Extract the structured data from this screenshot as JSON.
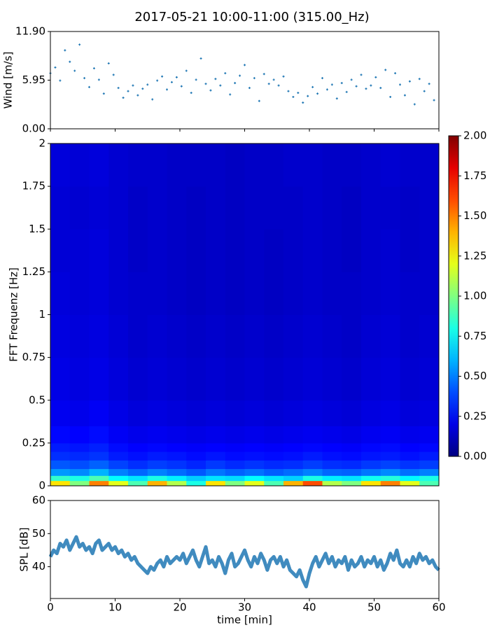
{
  "chart_data": [
    {
      "type": "scatter",
      "title": "2017-05-21 10:00-11:00 (315.00_Hz)",
      "ylabel": "Wind [m/s]",
      "color": "#1f77b4",
      "xlim": [
        0,
        60
      ],
      "xticks": [
        0,
        10,
        20,
        30,
        40,
        50,
        60
      ],
      "xtick_labels": false,
      "ylim": [
        0,
        11.9
      ],
      "yticks": [
        {
          "value": 0,
          "label": "0.00"
        },
        5.95,
        {
          "value": 11.9,
          "label": "11.90"
        }
      ],
      "x": [
        0,
        0.75,
        1.5,
        2.25,
        3,
        3.75,
        4.5,
        5.25,
        6,
        6.75,
        7.5,
        8.25,
        9,
        9.75,
        10.5,
        11.25,
        12,
        12.75,
        13.5,
        14.25,
        15,
        15.75,
        16.5,
        17.25,
        18,
        18.75,
        19.5,
        20.25,
        21,
        21.75,
        22.5,
        23.25,
        24,
        24.75,
        25.5,
        26.25,
        27,
        27.75,
        28.5,
        29.25,
        30,
        30.75,
        31.5,
        32.25,
        33,
        33.75,
        34.5,
        35.25,
        36,
        36.75,
        37.5,
        38.25,
        39,
        39.75,
        40.5,
        41.25,
        42,
        42.75,
        43.5,
        44.25,
        45,
        45.75,
        46.5,
        47.25,
        48,
        48.75,
        49.5,
        50.25,
        51,
        51.75,
        52.5,
        53.25,
        54,
        54.75,
        55.5,
        56.25,
        57,
        57.75,
        58.5,
        59.25
      ],
      "values": [
        6.8,
        7.5,
        5.9,
        9.6,
        8.2,
        7.1,
        10.3,
        6.2,
        5.1,
        7.4,
        6.0,
        4.3,
        8.0,
        6.6,
        5.0,
        3.8,
        4.6,
        5.3,
        4.1,
        4.9,
        5.4,
        3.6,
        5.9,
        6.4,
        4.8,
        5.7,
        6.3,
        5.2,
        7.1,
        4.4,
        6.0,
        8.6,
        5.5,
        4.7,
        6.1,
        5.3,
        6.8,
        4.2,
        5.6,
        6.5,
        7.8,
        5.0,
        6.2,
        3.4,
        6.7,
        5.5,
        6.0,
        5.3,
        6.4,
        4.6,
        3.9,
        4.4,
        3.2,
        4.0,
        5.1,
        4.3,
        6.2,
        4.8,
        5.4,
        3.7,
        5.6,
        4.5,
        6.0,
        5.2,
        6.6,
        4.9,
        5.3,
        6.3,
        5.0,
        7.2,
        3.9,
        6.8,
        5.4,
        4.1,
        5.8,
        3.0,
        6.1,
        4.6,
        5.5,
        3.5
      ]
    },
    {
      "type": "heatmap",
      "ylabel": "FFT Frequenz [Hz]",
      "colormap": "jet",
      "xlim": [
        0,
        60
      ],
      "ylim": [
        0,
        2
      ],
      "yticks": [
        0,
        0.25,
        0.5,
        0.75,
        1,
        1.25,
        1.5,
        1.75,
        2
      ],
      "x_edges": [
        0,
        3,
        6,
        9,
        12,
        15,
        18,
        21,
        24,
        27,
        30,
        33,
        36,
        39,
        42,
        45,
        48,
        51,
        54,
        57,
        60
      ],
      "y_edges": [
        0,
        0.03,
        0.06,
        0.1,
        0.15,
        0.2,
        0.25,
        0.35,
        0.5,
        0.75,
        1,
        1.25,
        1.5,
        1.75,
        2
      ],
      "z": [
        [
          1.3,
          1.0,
          1.5,
          1.2,
          0.9,
          1.4,
          1.1,
          0.8,
          1.3,
          1.0,
          1.2,
          0.9,
          1.4,
          1.6,
          1.1,
          1.0,
          1.3,
          1.5,
          1.2,
          0.9
        ],
        [
          0.85,
          0.8,
          0.9,
          0.75,
          0.7,
          0.8,
          0.72,
          0.65,
          0.7,
          0.68,
          0.75,
          0.7,
          0.66,
          0.8,
          0.72,
          0.7,
          0.78,
          0.82,
          0.74,
          0.8
        ],
        [
          0.55,
          0.52,
          0.6,
          0.5,
          0.45,
          0.5,
          0.46,
          0.42,
          0.48,
          0.44,
          0.47,
          0.43,
          0.46,
          0.5,
          0.45,
          0.44,
          0.48,
          0.52,
          0.47,
          0.5
        ],
        [
          0.42,
          0.4,
          0.44,
          0.38,
          0.34,
          0.37,
          0.35,
          0.32,
          0.36,
          0.33,
          0.35,
          0.33,
          0.34,
          0.37,
          0.34,
          0.33,
          0.36,
          0.38,
          0.35,
          0.37
        ],
        [
          0.34,
          0.33,
          0.35,
          0.3,
          0.28,
          0.3,
          0.29,
          0.27,
          0.29,
          0.27,
          0.28,
          0.27,
          0.28,
          0.3,
          0.28,
          0.27,
          0.29,
          0.3,
          0.28,
          0.3
        ],
        [
          0.3,
          0.29,
          0.31,
          0.27,
          0.25,
          0.26,
          0.25,
          0.24,
          0.25,
          0.24,
          0.25,
          0.24,
          0.25,
          0.26,
          0.25,
          0.24,
          0.26,
          0.27,
          0.25,
          0.26
        ],
        [
          0.26,
          0.25,
          0.27,
          0.23,
          0.21,
          0.22,
          0.21,
          0.2,
          0.21,
          0.2,
          0.21,
          0.2,
          0.21,
          0.22,
          0.21,
          0.2,
          0.22,
          0.23,
          0.21,
          0.22
        ],
        [
          0.22,
          0.21,
          0.23,
          0.2,
          0.18,
          0.19,
          0.18,
          0.17,
          0.18,
          0.17,
          0.18,
          0.17,
          0.18,
          0.19,
          0.18,
          0.17,
          0.19,
          0.2,
          0.18,
          0.19
        ],
        [
          0.2,
          0.19,
          0.2,
          0.18,
          0.16,
          0.17,
          0.16,
          0.15,
          0.16,
          0.15,
          0.16,
          0.15,
          0.16,
          0.17,
          0.16,
          0.15,
          0.17,
          0.18,
          0.16,
          0.17
        ],
        [
          0.19,
          0.18,
          0.19,
          0.17,
          0.15,
          0.16,
          0.15,
          0.14,
          0.15,
          0.14,
          0.15,
          0.14,
          0.15,
          0.16,
          0.15,
          0.14,
          0.16,
          0.17,
          0.15,
          0.16
        ],
        [
          0.18,
          0.17,
          0.18,
          0.16,
          0.15,
          0.15,
          0.14,
          0.13,
          0.14,
          0.13,
          0.14,
          0.13,
          0.14,
          0.15,
          0.14,
          0.14,
          0.15,
          0.16,
          0.15,
          0.15
        ],
        [
          0.17,
          0.17,
          0.18,
          0.16,
          0.14,
          0.15,
          0.14,
          0.13,
          0.14,
          0.13,
          0.14,
          0.13,
          0.14,
          0.15,
          0.14,
          0.13,
          0.15,
          0.16,
          0.14,
          0.15
        ],
        [
          0.17,
          0.16,
          0.17,
          0.16,
          0.14,
          0.15,
          0.14,
          0.13,
          0.14,
          0.13,
          0.14,
          0.14,
          0.14,
          0.15,
          0.14,
          0.13,
          0.15,
          0.15,
          0.14,
          0.15
        ],
        [
          0.18,
          0.17,
          0.18,
          0.16,
          0.15,
          0.15,
          0.14,
          0.14,
          0.14,
          0.13,
          0.14,
          0.14,
          0.15,
          0.15,
          0.14,
          0.14,
          0.15,
          0.16,
          0.15,
          0.15
        ]
      ],
      "colorbar": {
        "lim": [
          0,
          2
        ],
        "ticks": [
          {
            "value": 0,
            "label": "0.00"
          },
          {
            "value": 0.25,
            "label": "0.25"
          },
          {
            "value": 0.5,
            "label": "0.50"
          },
          {
            "value": 0.75,
            "label": "0.75"
          },
          {
            "value": 1,
            "label": "1.00"
          },
          {
            "value": 1.25,
            "label": "1.25"
          },
          {
            "value": 1.5,
            "label": "1.50"
          },
          {
            "value": 1.75,
            "label": "1.75"
          },
          {
            "value": 2,
            "label": "2.00"
          }
        ]
      }
    },
    {
      "type": "line",
      "ylabel": "SPL [dB]",
      "xlabel": "time [min]",
      "color": "#1f77b4",
      "xlim": [
        0,
        60
      ],
      "xticks": [
        0,
        10,
        20,
        30,
        40,
        50,
        60
      ],
      "xtick_labels": true,
      "ylim": [
        30.4,
        60
      ],
      "yticks": [
        40,
        50,
        60
      ],
      "x": [
        0,
        0.5,
        1,
        1.5,
        2,
        2.5,
        3,
        3.5,
        4,
        4.5,
        5,
        5.5,
        6,
        6.5,
        7,
        7.5,
        8,
        8.5,
        9,
        9.5,
        10,
        10.5,
        11,
        11.5,
        12,
        12.5,
        13,
        13.5,
        14,
        14.5,
        15,
        15.5,
        16,
        16.5,
        17,
        17.5,
        18,
        18.5,
        19,
        19.5,
        20,
        20.5,
        21,
        21.5,
        22,
        22.5,
        23,
        23.5,
        24,
        24.5,
        25,
        25.5,
        26,
        26.5,
        27,
        27.5,
        28,
        28.5,
        29,
        29.5,
        30,
        30.5,
        31,
        31.5,
        32,
        32.5,
        33,
        33.5,
        34,
        34.5,
        35,
        35.5,
        36,
        36.5,
        37,
        37.5,
        38,
        38.5,
        39,
        39.5,
        40,
        40.5,
        41,
        41.5,
        42,
        42.5,
        43,
        43.5,
        44,
        44.5,
        45,
        45.5,
        46,
        46.5,
        47,
        47.5,
        48,
        48.5,
        49,
        49.5,
        50,
        50.5,
        51,
        51.5,
        52,
        52.5,
        53,
        53.5,
        54,
        54.5,
        55,
        55.5,
        56,
        56.5,
        57,
        57.5,
        58,
        58.5,
        59,
        59.5,
        60
      ],
      "values": [
        43,
        45,
        44,
        47,
        46,
        48,
        45,
        47,
        49,
        46,
        47,
        45,
        46,
        44,
        47,
        48,
        45,
        46,
        47,
        45,
        46,
        44,
        45,
        43,
        44,
        42,
        43,
        41,
        40,
        39,
        38,
        40,
        39,
        41,
        42,
        40,
        43,
        41,
        42,
        43,
        42,
        44,
        41,
        43,
        45,
        42,
        40,
        43,
        46,
        41,
        42,
        40,
        43,
        41,
        38,
        42,
        44,
        40,
        41,
        43,
        45,
        42,
        40,
        43,
        41,
        44,
        42,
        39,
        42,
        43,
        41,
        43,
        40,
        42,
        39,
        38,
        37,
        39,
        36,
        34,
        38,
        41,
        43,
        40,
        42,
        44,
        41,
        43,
        40,
        42,
        41,
        43,
        39,
        42,
        40,
        41,
        43,
        40,
        42,
        41,
        43,
        40,
        42,
        39,
        41,
        44,
        42,
        45,
        41,
        40,
        42,
        40,
        43,
        41,
        44,
        42,
        43,
        41,
        42,
        40,
        39
      ]
    }
  ]
}
